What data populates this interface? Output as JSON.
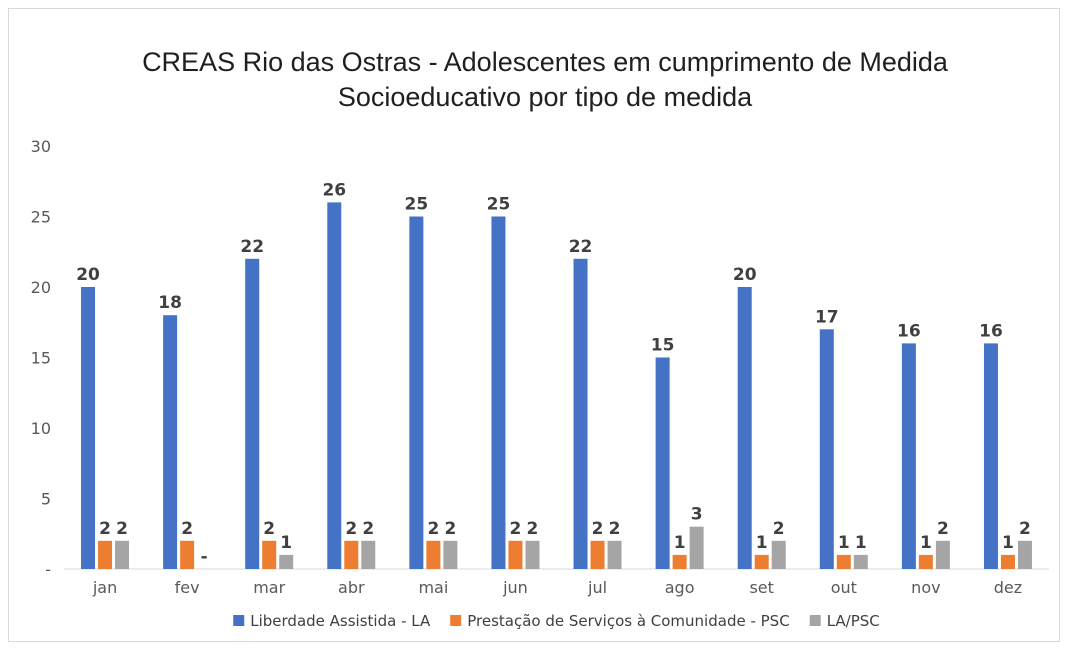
{
  "chart_data": {
    "type": "bar",
    "title": "CREAS Rio das Ostras - Adolescentes em cumprimento de Medida Socioeducativo por tipo de medida",
    "title_lines": [
      "CREAS Rio das Ostras - Adolescentes em cumprimento de Medida",
      "Socioeducativo por tipo de medida"
    ],
    "xlabel": "",
    "ylabel": "",
    "ylim": [
      0,
      30
    ],
    "yticks": [
      0,
      5,
      10,
      15,
      20,
      25,
      30
    ],
    "ytick_labels": [
      "-",
      "5",
      "10",
      "15",
      "20",
      "25",
      "30"
    ],
    "grid": false,
    "legend_position": "bottom",
    "categories": [
      "jan",
      "fev",
      "mar",
      "abr",
      "mai",
      "jun",
      "jul",
      "ago",
      "set",
      "out",
      "nov",
      "dez"
    ],
    "series": [
      {
        "name": "Liberdade Assistida - LA",
        "color": "#4472c4",
        "values": [
          20,
          18,
          22,
          26,
          25,
          25,
          22,
          15,
          20,
          17,
          16,
          16
        ],
        "labels": [
          "20",
          "18",
          "22",
          "26",
          "25",
          "25",
          "22",
          "15",
          "20",
          "17",
          "16",
          "16"
        ]
      },
      {
        "name": "Prestação de Serviços à Comunidade - PSC",
        "color": "#ed7d31",
        "values": [
          2,
          2,
          2,
          2,
          2,
          2,
          2,
          1,
          1,
          1,
          1,
          1
        ],
        "labels": [
          "2",
          "2",
          "2",
          "2",
          "2",
          "2",
          "2",
          "1",
          "1",
          "1",
          "1",
          "1"
        ]
      },
      {
        "name": "LA/PSC",
        "color": "#a5a5a5",
        "values": [
          2,
          0,
          1,
          2,
          2,
          2,
          2,
          3,
          2,
          1,
          2,
          2
        ],
        "labels": [
          "2",
          "-",
          "1",
          "2",
          "2",
          "2",
          "2",
          "3",
          "2",
          "1",
          "2",
          "2"
        ]
      }
    ]
  }
}
